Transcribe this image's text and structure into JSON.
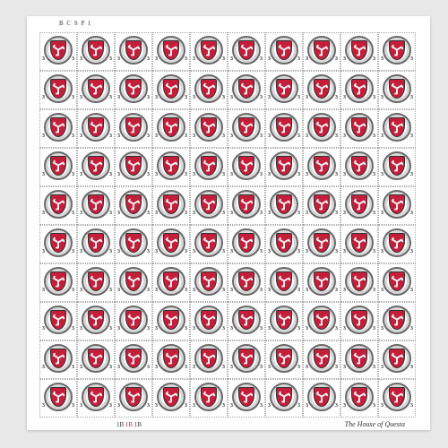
{
  "sheet": {
    "rows": 10,
    "cols": 10,
    "top_marking": "B C S P 1",
    "bottom_left_codes": [
      "1B",
      "1B",
      "1B"
    ],
    "bottom_right_text": "The House of Questa",
    "background_color": "#e8e8e8",
    "paper_color": "#fefefe"
  },
  "stamp": {
    "country": "ISLE OF MAN",
    "type": "TO PAY",
    "denomination": "3",
    "shield_color": "#c41e3a",
    "ring_color": "#6a6a6a",
    "ring_fill": "#d8d8d8",
    "triskelion_color": "#f0f0f0"
  }
}
